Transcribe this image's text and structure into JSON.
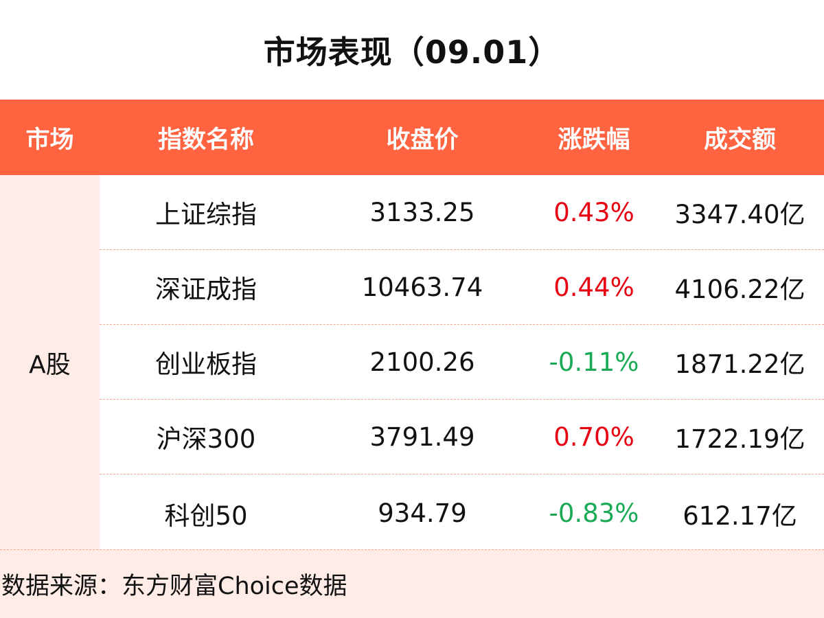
{
  "title": "市场表现（09.01）",
  "colors": {
    "header_bg": "#FF6340",
    "row_tint": "#FFECE6",
    "up": "#E60012",
    "down": "#1AAA55"
  },
  "table": {
    "headers": {
      "market": "市场",
      "name": "指数名称",
      "close": "收盘价",
      "change": "涨跌幅",
      "volume": "成交额"
    },
    "market": "A股",
    "rows": [
      {
        "name": "上证综指",
        "close": "3133.25",
        "change": "0.43%",
        "direction": "up",
        "volume": "3347.40亿"
      },
      {
        "name": "深证成指",
        "close": "10463.74",
        "change": "0.44%",
        "direction": "up",
        "volume": "4106.22亿"
      },
      {
        "name": "创业板指",
        "close": "2100.26",
        "change": "-0.11%",
        "direction": "down",
        "volume": "1871.22亿"
      },
      {
        "name": "沪深300",
        "close": "3791.49",
        "change": "0.70%",
        "direction": "up",
        "volume": "1722.19亿"
      },
      {
        "name": "科创50",
        "close": "934.79",
        "change": "-0.83%",
        "direction": "down",
        "volume": "612.17亿"
      }
    ]
  },
  "footer": "数据来源：东方财富Choice数据"
}
